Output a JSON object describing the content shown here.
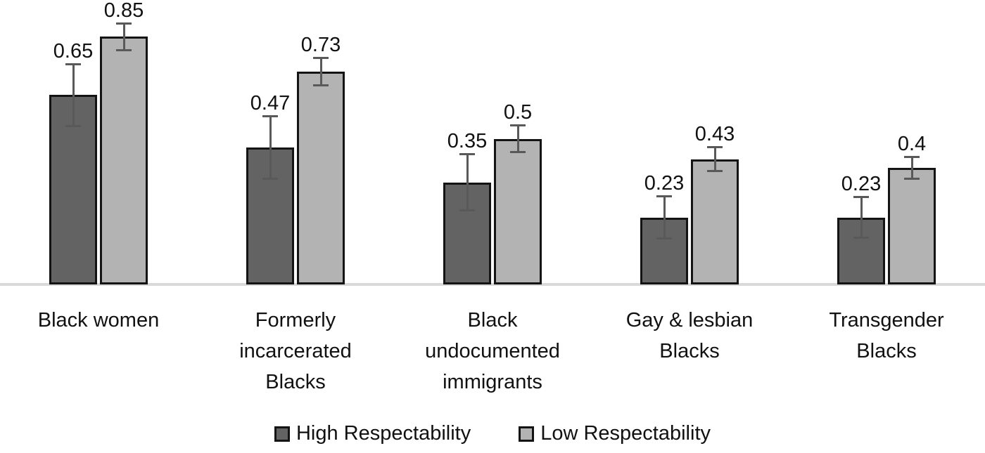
{
  "chart_data": {
    "type": "bar",
    "title": "",
    "xlabel": "",
    "ylabel": "",
    "ylim": [
      0,
      1
    ],
    "grid": false,
    "value_axis_visible": false,
    "legend_position": "bottom",
    "axis_color": "#d9d9d9",
    "error_bar_color": "#595959",
    "bar_border_color": "#141414",
    "categories": [
      "Black women",
      "Formerly incarcerated Blacks",
      "Black undocumented immigrants",
      "Gay & lesbian Blacks",
      "Transgender Blacks"
    ],
    "category_display": [
      "Black women",
      "Formerly\nincarcerated\nBlacks",
      "Black\nundocumented\nimmigrants",
      "Gay & lesbian\nBlacks",
      "Transgender\nBlacks"
    ],
    "series": [
      {
        "name": "High Respectability",
        "color": "#636363",
        "values": [
          0.65,
          0.47,
          0.35,
          0.23,
          0.23
        ],
        "labels": [
          "0.65",
          "0.47",
          "0.35",
          "0.23",
          "0.23"
        ],
        "errors": [
          0.11,
          0.11,
          0.1,
          0.075,
          0.073
        ]
      },
      {
        "name": "Low Respectability",
        "color": "#b3b3b3",
        "values": [
          0.85,
          0.73,
          0.5,
          0.43,
          0.4
        ],
        "labels": [
          "0.85",
          "0.73",
          "0.5",
          "0.43",
          "0.4"
        ],
        "errors": [
          0.05,
          0.05,
          0.05,
          0.045,
          0.04
        ]
      }
    ]
  }
}
